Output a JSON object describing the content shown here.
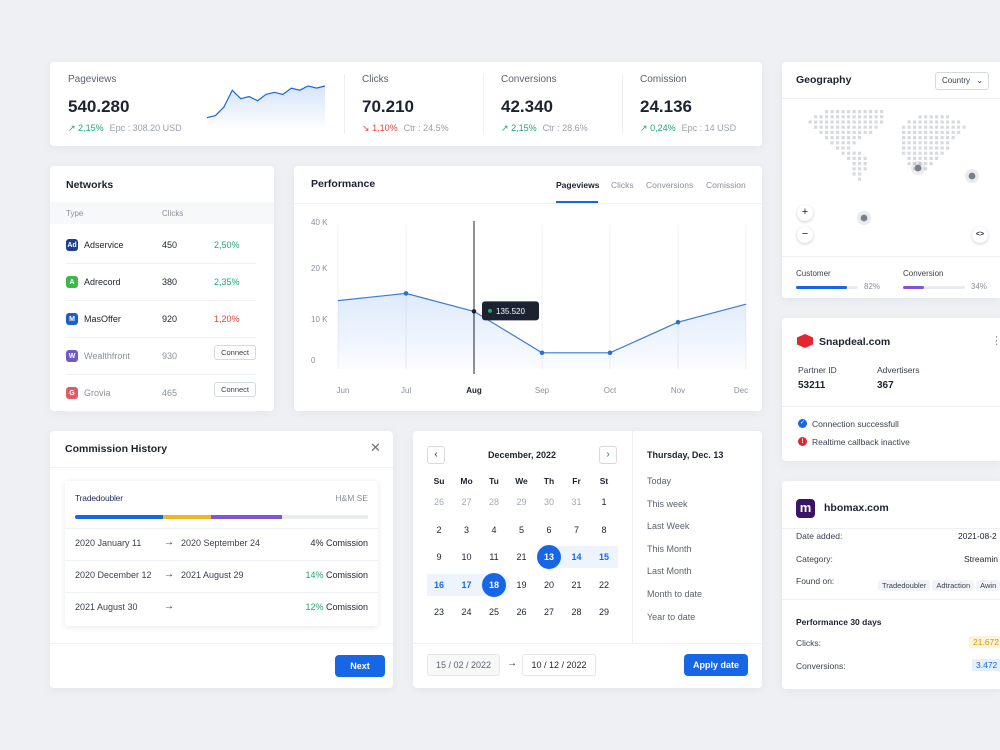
{
  "stats": [
    {
      "label": "Pageviews",
      "value": "540.280",
      "change": "2,15%",
      "change_dir": "up",
      "sub": "Epc : 308.20 USD"
    },
    {
      "label": "Clicks",
      "value": "70.210",
      "change": "1,10%",
      "change_dir": "down",
      "sub": "Ctr : 24.5%"
    },
    {
      "label": "Conversions",
      "value": "42.340",
      "change": "2,15%",
      "change_dir": "up",
      "sub": "Ctr : 28.6%"
    },
    {
      "label": "Comission",
      "value": "24.136",
      "change": "0,24%",
      "change_dir": "up",
      "sub": "Epc : 14 USD"
    }
  ],
  "sparkline": {
    "values": [
      3,
      4,
      8,
      16,
      12,
      13,
      11,
      14,
      15,
      14,
      17,
      16,
      18,
      17,
      18
    ]
  },
  "geography": {
    "title": "Geography",
    "select_value": "Country",
    "zoom_in": "+",
    "zoom_out": "−",
    "expand": "<>",
    "customer_label": "Customer",
    "customer_pct": "82%",
    "customer_fill": 0.82,
    "conversion_label": "Conversion",
    "conversion_pct": "34%",
    "conversion_fill": 0.34
  },
  "networks": {
    "title": "Networks",
    "col_type": "Type",
    "col_clicks": "Clicks",
    "rows": [
      {
        "name": "Adservice",
        "clicks": "450",
        "rate": "2,50%",
        "dir": "up",
        "logo": "Ad",
        "color": "#1d3f8a",
        "action": ""
      },
      {
        "name": "Adrecord",
        "clicks": "380",
        "rate": "2,35%",
        "dir": "up",
        "logo": "A",
        "color": "#3fb64a",
        "action": ""
      },
      {
        "name": "MasOffer",
        "clicks": "920",
        "rate": "1,20%",
        "dir": "down",
        "logo": "M",
        "color": "#1f5fc4",
        "action": ""
      },
      {
        "name": "Wealthfront",
        "clicks": "930",
        "rate": "",
        "dir": "",
        "logo": "W",
        "color": "#6d5ac8",
        "action": "Connect"
      },
      {
        "name": "Grovia",
        "clicks": "465",
        "rate": "",
        "dir": "",
        "logo": "G",
        "color": "#e15b64",
        "action": "Connect"
      }
    ]
  },
  "performance": {
    "title": "Performance",
    "tabs": [
      "Pageviews",
      "Clicks",
      "Conversions",
      "Comission"
    ],
    "active_tab": 0,
    "tooltip": "135.520"
  },
  "chart_data": {
    "type": "area",
    "categories": [
      "Jun",
      "Jul",
      "Aug",
      "Sep",
      "Oct",
      "Nov",
      "Dec"
    ],
    "values": [
      19000,
      21000,
      16000,
      4500,
      4500,
      13000,
      18000
    ],
    "y_ticks": [
      "40 K",
      "20 K",
      "10 K",
      "0"
    ],
    "ylim": [
      0,
      40000
    ],
    "highlight_category": "Aug",
    "grid": true
  },
  "snapdeal": {
    "name": "Snapdeal.com",
    "partner_label": "Partner ID",
    "partner_value": "53211",
    "adv_label": "Advertisers",
    "adv_value": "367",
    "status1": "Connection successfull",
    "status2": "Realtime callback inactive",
    "more": "⋮"
  },
  "commission": {
    "title": "Commission History",
    "brand": "Tradedoubler",
    "partner": "H&M SE",
    "rows": [
      {
        "from": "2020 January 11",
        "to": "2020 September 24",
        "pct": "4%",
        "pct_color": "#1c2230",
        "suffix": "Comission"
      },
      {
        "from": "2020 December 12",
        "to": "2021 August 29",
        "pct": "14%",
        "pct_color": "#1ea672",
        "suffix": "Comission"
      },
      {
        "from": "2021 August 30",
        "to": "",
        "pct": "12%",
        "pct_color": "#1ea672",
        "suffix": "Comission"
      }
    ],
    "next": "Next"
  },
  "calendar": {
    "month": "December, 2022",
    "weekdays": [
      "Su",
      "Mo",
      "Tu",
      "We",
      "Th",
      "Fr",
      "St"
    ],
    "weeks": [
      [
        "26",
        "27",
        "28",
        "29",
        "30",
        "31",
        "1"
      ],
      [
        "2",
        "3",
        "4",
        "5",
        "6",
        "7",
        "8"
      ],
      [
        "9",
        "10",
        "11",
        "21",
        "13",
        "14",
        "15"
      ],
      [
        "16",
        "17",
        "18",
        "19",
        "20",
        "21",
        "22"
      ],
      [
        "23",
        "24",
        "25",
        "26",
        "27",
        "28",
        "29"
      ]
    ],
    "muted_first_week": 6,
    "selected_label": "Thursday, Dec. 13",
    "quick": [
      "Today",
      "This week",
      "Last Week",
      "This Month",
      "Last Month",
      "Month to date",
      "Year to date"
    ],
    "from": "15 / 02 / 2022",
    "to": "10 / 12 / 2022",
    "apply": "Apply date"
  },
  "hbomax": {
    "name": "hbomax.com",
    "date_label": "Date added:",
    "date_value": "2021-08-2",
    "cat_label": "Category:",
    "cat_value": "Streamin",
    "found_label": "Found on:",
    "tags": [
      "Tradedoubler",
      "Adtraction",
      "Awin"
    ],
    "perf_title": "Performance 30 days",
    "clicks_label": "Clicks:",
    "clicks_value": "21.672",
    "conv_label": "Conversions:",
    "conv_value": "3.472"
  }
}
